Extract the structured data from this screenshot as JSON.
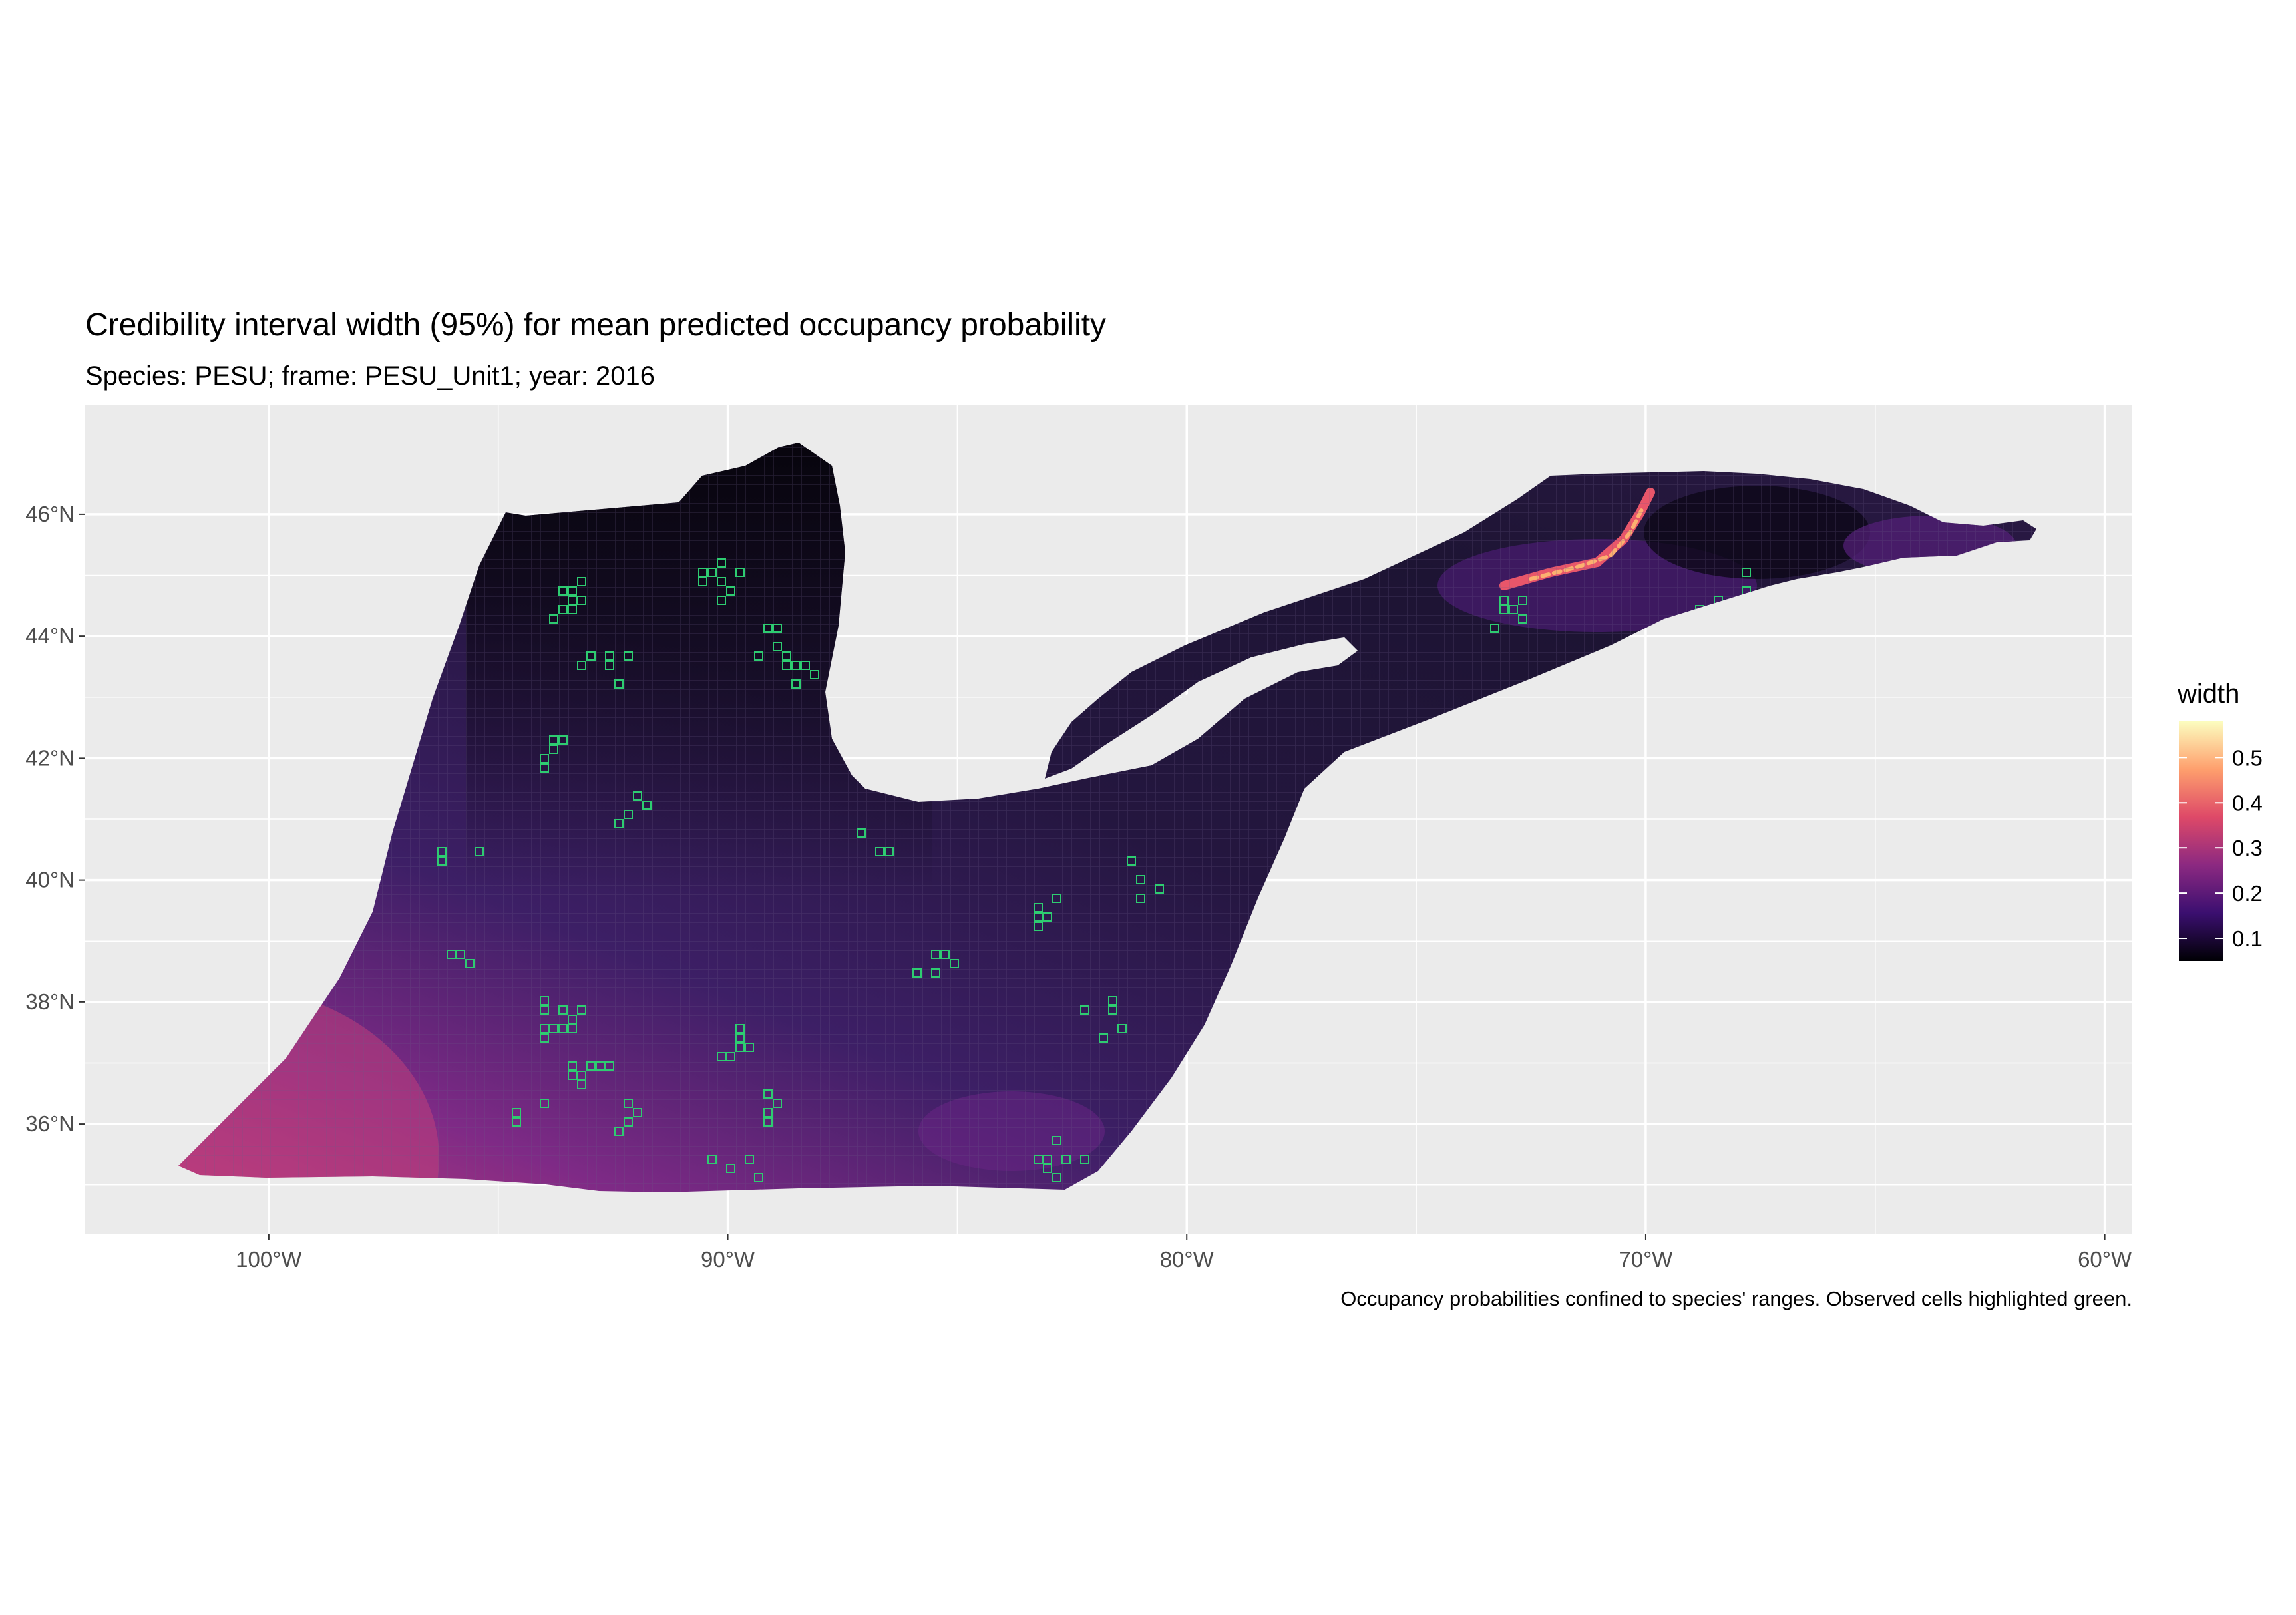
{
  "title": "Credibility interval width (95%) for mean predicted occupancy probability",
  "subtitle": "Species: PESU; frame: PESU_Unit1; year: 2016",
  "caption": "Occupancy probabilities confined to species' ranges. Observed cells highlighted green.",
  "x_axis": {
    "ticks": [
      {
        "value": -100,
        "label": "100°W"
      },
      {
        "value": -90,
        "label": "90°W"
      },
      {
        "value": -80,
        "label": "80°W"
      },
      {
        "value": -70,
        "label": "70°W"
      },
      {
        "value": -60,
        "label": "60°W"
      }
    ],
    "range": [
      -104,
      -59.4
    ]
  },
  "y_axis": {
    "ticks": [
      {
        "value": 36,
        "label": "36°N"
      },
      {
        "value": 38,
        "label": "38°N"
      },
      {
        "value": 40,
        "label": "40°N"
      },
      {
        "value": 42,
        "label": "42°N"
      },
      {
        "value": 44,
        "label": "44°N"
      },
      {
        "value": 46,
        "label": "46°N"
      }
    ],
    "range": [
      34.2,
      47.8
    ]
  },
  "legend": {
    "title": "width",
    "labels": [
      "0.5",
      "0.4",
      "0.3",
      "0.2",
      "0.1"
    ],
    "values": [
      0.5,
      0.4,
      0.3,
      0.2,
      0.1
    ],
    "range": [
      0.05,
      0.58
    ],
    "palette": [
      "#000004",
      "#3b0f70",
      "#8c2981",
      "#de4968",
      "#fe9f6d",
      "#fcfdbf"
    ],
    "placement": "right"
  },
  "colors": {
    "panel_background": "#ebebeb",
    "grid_line": "#ffffff",
    "observed_cell_outline": "#2ecc71",
    "map_base_dark": "#0a0713",
    "map_base_mid": "#2a1a48",
    "map_southwest_high": "#b4387a",
    "map_northeast_hotspot": "#fcae6b"
  }
}
